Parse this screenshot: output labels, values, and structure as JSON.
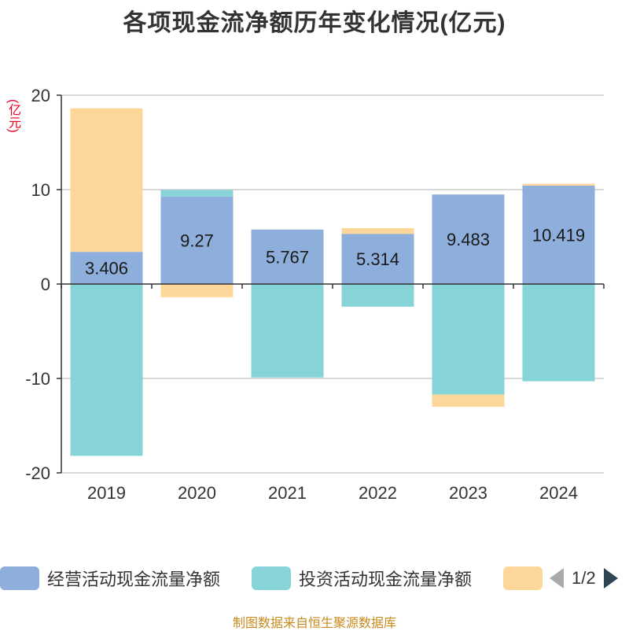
{
  "title": "各项现金流净额历年变化情况(亿元)",
  "unit": "(亿元)",
  "source": "制图数据来自恒生聚源数据库",
  "colors": {
    "operating": "#8eaedb",
    "investing": "#86d4d8",
    "financing": "#fdd799",
    "axis": "#333333",
    "grid": "#cccccc"
  },
  "legend": {
    "items": [
      "经营活动现金流量净额",
      "投资活动现金流量净额",
      ""
    ],
    "pager": "1/2"
  },
  "chart_data": {
    "type": "bar",
    "stacked": true,
    "categories": [
      "2019",
      "2020",
      "2021",
      "2022",
      "2023",
      "2024"
    ],
    "series": [
      {
        "name": "经营活动现金流量净额",
        "values": [
          3.406,
          9.27,
          5.767,
          5.314,
          9.483,
          10.419
        ],
        "labels": [
          "3.406",
          "9.27",
          "5.767",
          "5.314",
          "9.483",
          "10.419"
        ]
      },
      {
        "name": "投资活动现金流量净额",
        "values": [
          -18.2,
          0.7,
          -9.9,
          -2.4,
          -11.7,
          -10.3
        ]
      },
      {
        "name": "",
        "values": [
          15.2,
          -1.4,
          0,
          0.6,
          -1.3,
          0.2
        ]
      }
    ],
    "ylim": [
      -20,
      20
    ],
    "yticks": [
      20,
      10,
      0,
      -10,
      -20
    ],
    "ytick_labels": [
      "20",
      "10",
      "0",
      "-10",
      "-20"
    ],
    "grid": true,
    "legend_position": "bottom"
  }
}
